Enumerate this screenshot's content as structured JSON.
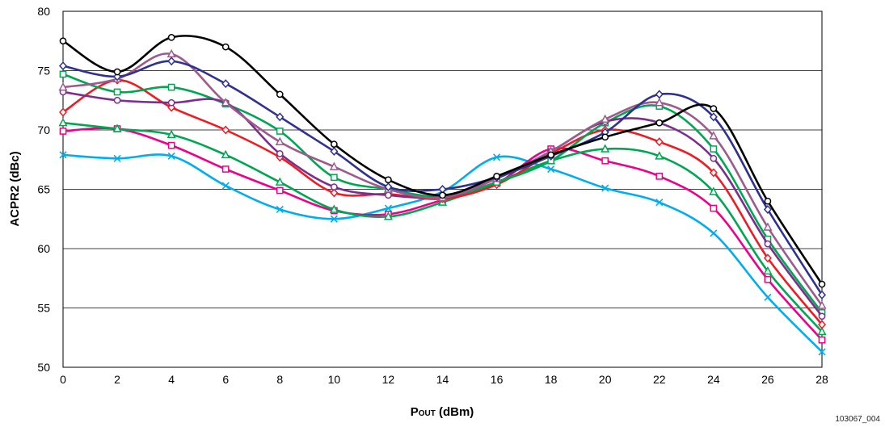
{
  "chart_data": {
    "type": "line",
    "xlabel": {
      "main": "P",
      "sub": "OUT",
      "unit": " (dBm)"
    },
    "ylabel": "ACPR2 (dBc)",
    "xlim": [
      0,
      28
    ],
    "ylim": [
      50,
      80
    ],
    "xticks": [
      0,
      2,
      4,
      6,
      8,
      10,
      12,
      14,
      16,
      18,
      20,
      22,
      24,
      26,
      28
    ],
    "yticks": [
      50,
      55,
      60,
      65,
      70,
      75,
      80
    ],
    "grid": "horizontal",
    "legend": "none",
    "x": [
      0,
      2,
      4,
      6,
      8,
      10,
      12,
      14,
      16,
      18,
      20,
      22,
      24,
      26,
      28
    ],
    "series": [
      {
        "color": "#00aeef",
        "marker": "x",
        "values": [
          67.9,
          67.6,
          67.8,
          65.3,
          63.3,
          62.5,
          63.4,
          64.8,
          67.7,
          66.7,
          65.1,
          63.9,
          61.3,
          55.9,
          51.3
        ]
      },
      {
        "color": "#ec008c",
        "marker": "square",
        "values": [
          69.9,
          70.1,
          68.7,
          66.7,
          64.9,
          63.2,
          62.9,
          64.1,
          65.5,
          68.4,
          67.4,
          66.1,
          63.4,
          57.4,
          52.3
        ]
      },
      {
        "color": "#00a651",
        "marker": "triangle",
        "values": [
          70.6,
          70.1,
          69.6,
          67.9,
          65.6,
          63.3,
          62.7,
          63.9,
          65.6,
          67.4,
          68.4,
          67.8,
          64.8,
          58.1,
          53.0
        ]
      },
      {
        "color": "#ed1c24",
        "marker": "diamond",
        "values": [
          71.5,
          74.2,
          71.9,
          70.0,
          67.7,
          64.7,
          64.6,
          64.2,
          65.4,
          68.0,
          70.0,
          69.0,
          66.4,
          59.2,
          53.6
        ]
      },
      {
        "color": "#00a651",
        "marker": "square",
        "values": [
          74.7,
          73.2,
          73.6,
          72.2,
          69.9,
          66.0,
          65.0,
          64.4,
          65.6,
          67.4,
          70.6,
          72.0,
          68.4,
          60.8,
          54.6
        ]
      },
      {
        "color": "#7b2e8e",
        "marker": "circle",
        "values": [
          73.2,
          72.5,
          72.3,
          72.3,
          68.0,
          65.2,
          64.5,
          64.4,
          65.9,
          68.2,
          70.7,
          70.6,
          67.6,
          60.4,
          54.3
        ]
      },
      {
        "color": "#9e5a8c",
        "marker": "triangle",
        "values": [
          73.6,
          74.3,
          76.4,
          72.3,
          69.0,
          66.9,
          65.0,
          64.3,
          65.9,
          68.2,
          70.9,
          72.3,
          69.5,
          61.8,
          55.2
        ]
      },
      {
        "color": "#2e3192",
        "marker": "diamond",
        "values": [
          75.4,
          74.5,
          75.8,
          73.9,
          71.1,
          68.2,
          65.2,
          65.0,
          66.0,
          67.8,
          69.8,
          73.0,
          71.1,
          63.3,
          56.1
        ]
      },
      {
        "color": "#000000",
        "marker": "circle",
        "values": [
          77.5,
          74.9,
          77.8,
          77.0,
          73.0,
          68.8,
          65.8,
          64.5,
          66.1,
          67.9,
          69.4,
          70.6,
          71.8,
          64.0,
          57.0
        ]
      }
    ]
  },
  "figure_id": "103067_004"
}
